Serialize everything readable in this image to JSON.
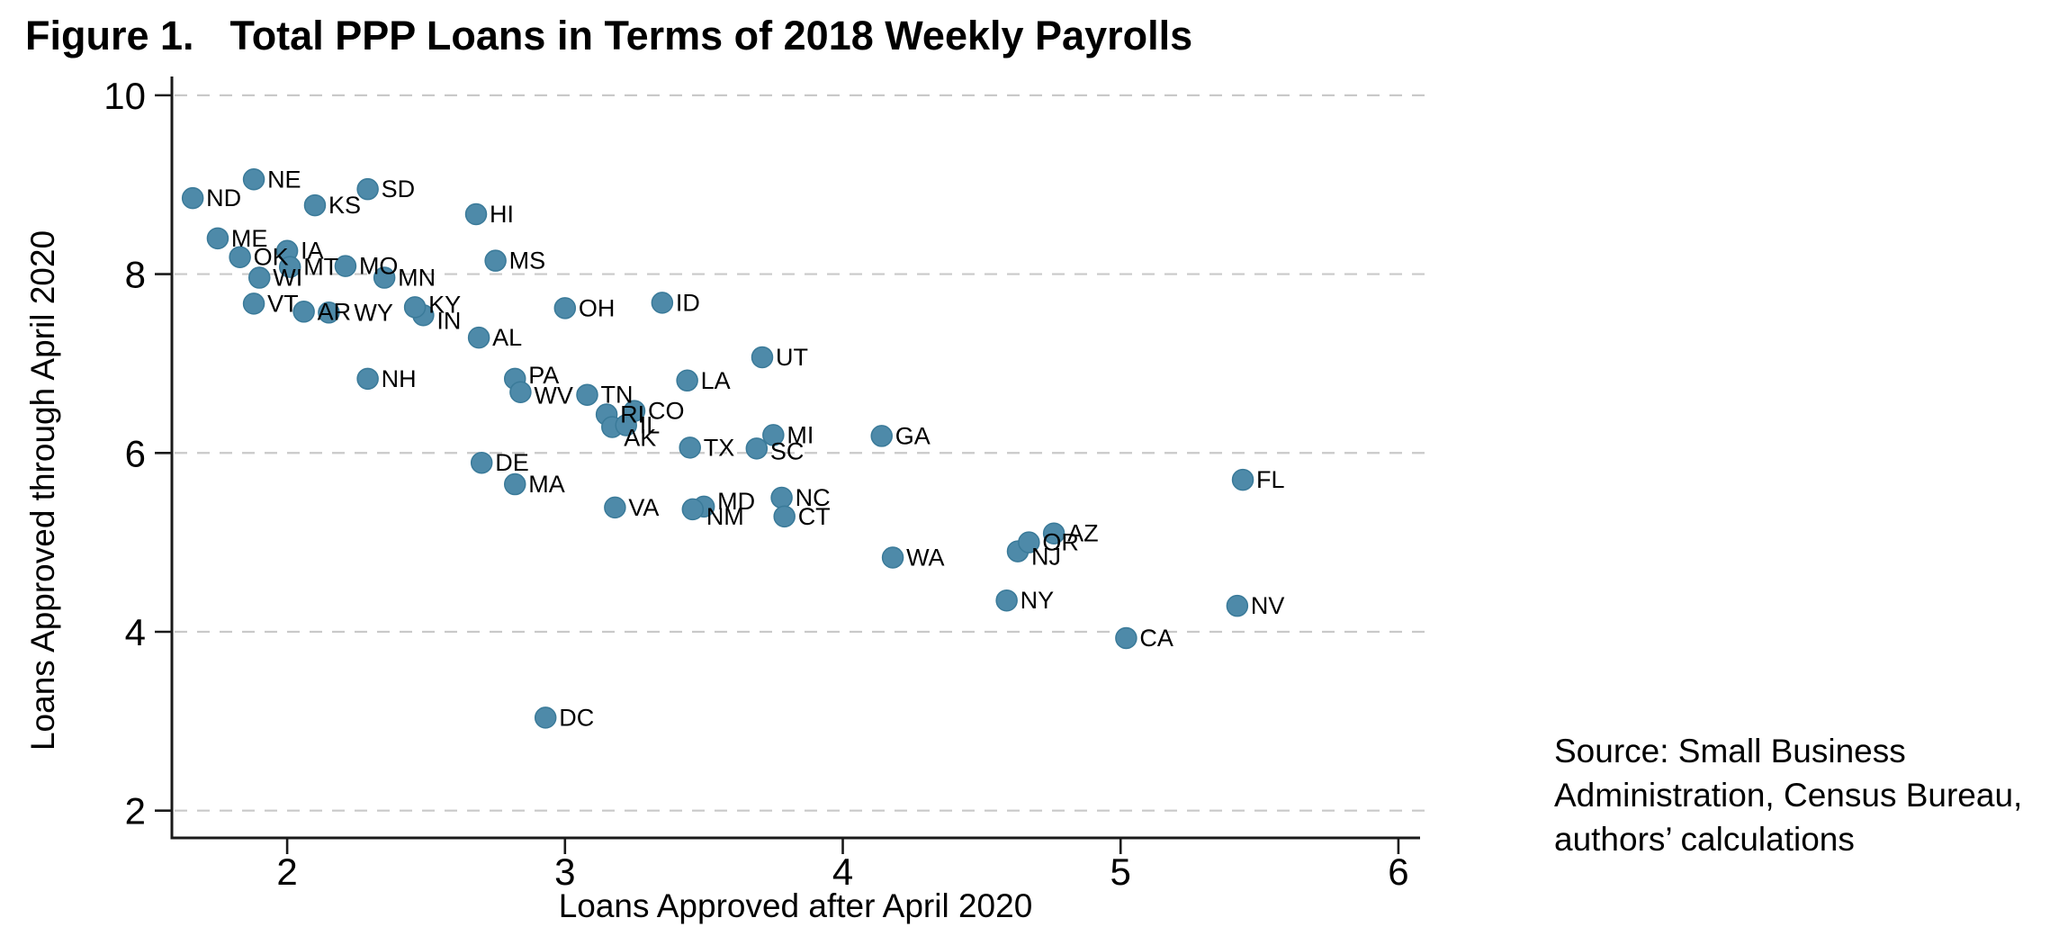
{
  "figure": {
    "title_prefix": "Figure 1.",
    "title_main": "Total PPP Loans in Terms of 2018 Weekly Payrolls"
  },
  "source_note": {
    "lines": [
      "Source: Small Business",
      "Administration, Census Bureau,",
      "authors’ calculations"
    ]
  },
  "chart_data": {
    "type": "scatter",
    "title": "Figure 1. Total PPP Loans in Terms of 2018 Weekly Payrolls",
    "xlabel": "Loans Approved after April 2020",
    "ylabel": "Loans Approved through April 2020",
    "xticks": [
      2,
      3,
      4,
      5,
      6
    ],
    "yticks": [
      2,
      4,
      6,
      8,
      10
    ],
    "xlim": [
      1.585,
      6.078
    ],
    "ylim": [
      1.695,
      10.21
    ],
    "grid": "horizontal-dashed",
    "legend": "none",
    "marker_color": "#4e8aa9",
    "marker_edge_color": "#3a7a99",
    "grid_color": "#c9c9c9",
    "axis_color": "#1a1a1a",
    "text_color": "#000000",
    "points": [
      {
        "label": "ND",
        "x": 1.66,
        "y": 8.85
      },
      {
        "label": "NE",
        "x": 1.88,
        "y": 9.06
      },
      {
        "label": "SD",
        "x": 2.29,
        "y": 8.95
      },
      {
        "label": "KS",
        "x": 2.1,
        "y": 8.77
      },
      {
        "label": "HI",
        "x": 2.68,
        "y": 8.67
      },
      {
        "label": "MS",
        "x": 2.75,
        "y": 8.15
      },
      {
        "label": "ME",
        "x": 1.75,
        "y": 8.4
      },
      {
        "label": "OK",
        "x": 1.83,
        "y": 8.19
      },
      {
        "label": "IA",
        "x": 2.0,
        "y": 8.26
      },
      {
        "label": "MT",
        "x": 2.01,
        "y": 8.08
      },
      {
        "label": "WI",
        "x": 1.9,
        "y": 7.96
      },
      {
        "label": "MO",
        "x": 2.21,
        "y": 8.09
      },
      {
        "label": "MN",
        "x": 2.35,
        "y": 7.96
      },
      {
        "label": "VT",
        "x": 1.88,
        "y": 7.67
      },
      {
        "label": "AR",
        "x": 2.06,
        "y": 7.58
      },
      {
        "label": "WY",
        "x": 2.15,
        "y": 7.57,
        "dx": 13
      },
      {
        "label": "IN",
        "x": 2.49,
        "y": 7.54,
        "dy": 6
      },
      {
        "label": "KY",
        "x": 2.46,
        "y": 7.63,
        "dy": -3
      },
      {
        "label": "OH",
        "x": 3.0,
        "y": 7.62
      },
      {
        "label": "ID",
        "x": 3.35,
        "y": 7.68
      },
      {
        "label": "AL",
        "x": 2.69,
        "y": 7.29
      },
      {
        "label": "NH",
        "x": 2.29,
        "y": 6.83
      },
      {
        "label": "PA",
        "x": 2.82,
        "y": 6.83,
        "dy": -4
      },
      {
        "label": "WV",
        "x": 2.84,
        "y": 6.68,
        "dy": 4
      },
      {
        "label": "TN",
        "x": 3.08,
        "y": 6.65
      },
      {
        "label": "RI",
        "x": 3.15,
        "y": 6.43
      },
      {
        "label": "CO",
        "x": 3.25,
        "y": 6.47
      },
      {
        "label": "AK",
        "x": 3.17,
        "y": 6.29,
        "dx": -2,
        "dy": 12
      },
      {
        "label": "IL",
        "x": 3.22,
        "y": 6.31
      },
      {
        "label": "TX",
        "x": 3.45,
        "y": 6.06
      },
      {
        "label": "LA",
        "x": 3.44,
        "y": 6.81
      },
      {
        "label": "UT",
        "x": 3.71,
        "y": 7.07
      },
      {
        "label": "MI",
        "x": 3.75,
        "y": 6.2
      },
      {
        "label": "SC",
        "x": 3.69,
        "y": 6.05,
        "dy": 3
      },
      {
        "label": "GA",
        "x": 4.14,
        "y": 6.19
      },
      {
        "label": "DE",
        "x": 2.7,
        "y": 5.89
      },
      {
        "label": "MA",
        "x": 2.82,
        "y": 5.65
      },
      {
        "label": "VA",
        "x": 3.18,
        "y": 5.39
      },
      {
        "label": "MD",
        "x": 3.5,
        "y": 5.4,
        "dy": -6
      },
      {
        "label": "NM",
        "x": 3.46,
        "y": 5.37,
        "dy": 8
      },
      {
        "label": "NC",
        "x": 3.78,
        "y": 5.5
      },
      {
        "label": "CT",
        "x": 3.79,
        "y": 5.29
      },
      {
        "label": "WA",
        "x": 4.18,
        "y": 4.83
      },
      {
        "label": "NJ",
        "x": 4.63,
        "y": 4.9,
        "dy": 6
      },
      {
        "label": "AZ",
        "x": 4.76,
        "y": 5.1
      },
      {
        "label": "OR",
        "x": 4.67,
        "y": 5.0
      },
      {
        "label": "NY",
        "x": 4.59,
        "y": 4.35
      },
      {
        "label": "FL",
        "x": 5.44,
        "y": 5.7
      },
      {
        "label": "NV",
        "x": 5.42,
        "y": 4.29
      },
      {
        "label": "CA",
        "x": 5.02,
        "y": 3.93
      },
      {
        "label": "DC",
        "x": 2.93,
        "y": 3.04
      }
    ]
  }
}
